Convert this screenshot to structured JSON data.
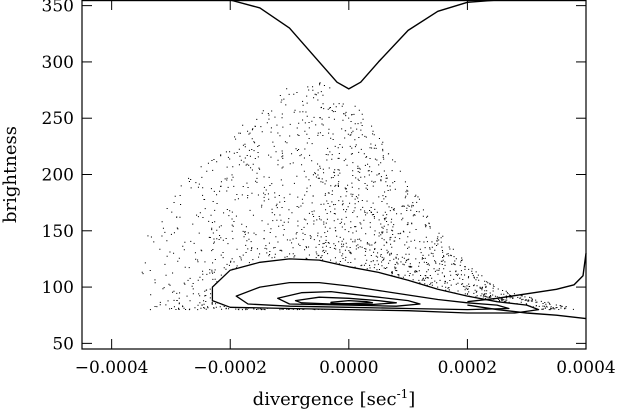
{
  "chart_data": {
    "type": "scatter",
    "title": "",
    "xlabel": "divergence [sec",
    "xlabel_superscript": "-1",
    "xlabel_close": "]",
    "ylabel": "brightness",
    "xlim": [
      -0.00045,
      0.0004
    ],
    "ylim": [
      45,
      355
    ],
    "grid": false,
    "legend": "none",
    "x_ticks": [
      {
        "value": -0.0004,
        "label": "−0.0004"
      },
      {
        "value": -0.0002,
        "label": "−0.0002"
      },
      {
        "value": 0.0,
        "label": "0.0000"
      },
      {
        "value": 0.0002,
        "label": "0.0002"
      },
      {
        "value": 0.0004,
        "label": "0.0004"
      }
    ],
    "y_ticks": [
      {
        "value": 50,
        "label": "50"
      },
      {
        "value": 100,
        "label": "100"
      },
      {
        "value": 150,
        "label": "150"
      },
      {
        "value": 200,
        "label": "200"
      },
      {
        "value": 250,
        "label": "250"
      },
      {
        "value": 300,
        "label": "300"
      },
      {
        "value": 350,
        "label": "350"
      }
    ],
    "scatter_cloud": {
      "color": "#000000",
      "core_center": [
        -5e-05,
        90
      ],
      "upper_envelope": [
        [
          -0.00035,
          150
        ],
        [
          -0.0003,
          185
        ],
        [
          -0.00025,
          215
        ],
        [
          -0.0002,
          235
        ],
        [
          -0.00015,
          260
        ],
        [
          -0.0001,
          280
        ],
        [
          -5e-05,
          285
        ],
        [
          0.0,
          270
        ],
        [
          5e-05,
          235
        ],
        [
          0.0001,
          195
        ],
        [
          0.00015,
          150
        ],
        [
          0.0002,
          120
        ],
        [
          0.00025,
          100
        ],
        [
          0.0003,
          92
        ],
        [
          0.00035,
          85
        ]
      ]
    },
    "curves": [
      {
        "kind": "distribution-top",
        "points": [
          [
            -0.0002,
            355
          ],
          [
            -0.00015,
            348
          ],
          [
            -0.0001,
            330
          ],
          [
            -5e-05,
            300
          ],
          [
            -2e-05,
            282
          ],
          [
            0.0,
            276
          ],
          [
            2e-05,
            282
          ],
          [
            5e-05,
            300
          ],
          [
            0.0001,
            328
          ],
          [
            0.00015,
            345
          ],
          [
            0.0002,
            353
          ],
          [
            0.00025,
            355
          ]
        ]
      },
      {
        "kind": "distribution-right",
        "points": [
          [
            0.0002,
            87
          ],
          [
            0.00025,
            90
          ],
          [
            0.0003,
            94
          ],
          [
            0.00035,
            98
          ],
          [
            0.00038,
            102
          ],
          [
            0.000395,
            110
          ],
          [
            0.0004,
            130
          ]
        ]
      },
      {
        "kind": "distribution-right-lower",
        "points": [
          [
            0.0002,
            84
          ],
          [
            0.00025,
            80
          ],
          [
            0.0003,
            77
          ],
          [
            0.00035,
            75
          ],
          [
            0.0004,
            72
          ]
        ]
      }
    ],
    "contours": [
      {
        "level": 1,
        "points": [
          [
            -0.00023,
            100
          ],
          [
            -0.0002,
            115
          ],
          [
            -0.00015,
            122
          ],
          [
            -0.0001,
            125
          ],
          [
            -5e-05,
            124
          ],
          [
            0.0,
            118
          ],
          [
            5e-05,
            113
          ],
          [
            0.0001,
            106
          ],
          [
            0.00015,
            98
          ],
          [
            0.0002,
            92
          ],
          [
            0.00025,
            87
          ],
          [
            0.0003,
            84
          ],
          [
            0.00032,
            80
          ],
          [
            0.00028,
            77
          ],
          [
            0.0002,
            77
          ],
          [
            0.0001,
            79
          ],
          [
            0.0,
            80
          ],
          [
            -0.0001,
            81
          ],
          [
            -0.0002,
            82
          ],
          [
            -0.00023,
            88
          ]
        ]
      },
      {
        "level": 2,
        "points": [
          [
            -0.00019,
            92
          ],
          [
            -0.00015,
            100
          ],
          [
            -0.0001,
            104
          ],
          [
            -5e-05,
            104
          ],
          [
            0.0,
            101
          ],
          [
            5e-05,
            97
          ],
          [
            0.0001,
            93
          ],
          [
            0.00015,
            89
          ],
          [
            0.0002,
            86
          ],
          [
            0.00025,
            84
          ],
          [
            0.00027,
            81
          ],
          [
            0.0002,
            80
          ],
          [
            0.0001,
            81
          ],
          [
            0.0,
            82
          ],
          [
            -0.0001,
            83
          ],
          [
            -0.00017,
            85
          ]
        ]
      },
      {
        "level": 3,
        "points": [
          [
            -0.00012,
            90
          ],
          [
            -8e-05,
            95
          ],
          [
            -3e-05,
            96
          ],
          [
            0.0,
            94
          ],
          [
            5e-05,
            91
          ],
          [
            0.0001,
            88
          ],
          [
            0.00012,
            85
          ],
          [
            8e-05,
            83
          ],
          [
            0.0,
            84
          ],
          [
            -0.0001,
            85
          ]
        ]
      },
      {
        "level": 4,
        "points": [
          [
            -9e-05,
            88
          ],
          [
            -5e-05,
            91
          ],
          [
            0.0,
            90
          ],
          [
            5e-05,
            88
          ],
          [
            8e-05,
            86
          ],
          [
            4e-05,
            84.5
          ],
          [
            -3e-05,
            85
          ],
          [
            -8e-05,
            86
          ]
        ]
      },
      {
        "level": 5,
        "points": [
          [
            -3e-05,
            86.5
          ],
          [
            0.0,
            88
          ],
          [
            3e-05,
            87
          ],
          [
            4e-05,
            86
          ],
          [
            0.0,
            85.2
          ],
          [
            -3e-05,
            85.5
          ]
        ]
      }
    ]
  }
}
